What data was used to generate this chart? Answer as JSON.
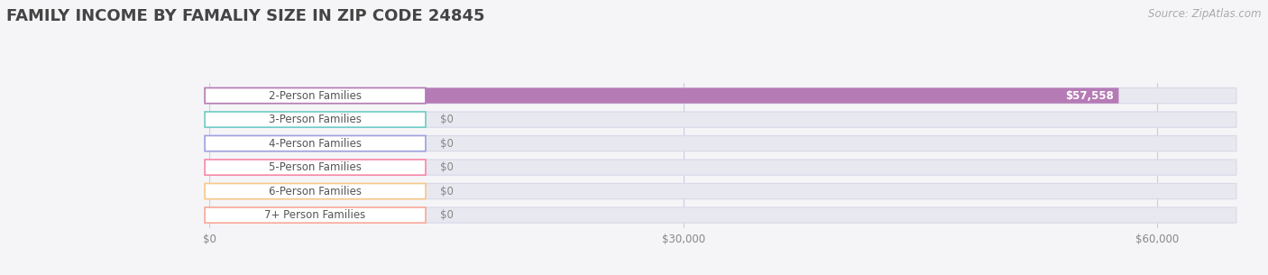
{
  "title": "FAMILY INCOME BY FAMALIY SIZE IN ZIP CODE 24845",
  "source": "Source: ZipAtlas.com",
  "categories": [
    "2-Person Families",
    "3-Person Families",
    "4-Person Families",
    "5-Person Families",
    "6-Person Families",
    "7+ Person Families"
  ],
  "values": [
    57558,
    0,
    0,
    0,
    0,
    0
  ],
  "bar_colors": [
    "#b57bb5",
    "#6eccc4",
    "#a0a0e0",
    "#f888a8",
    "#f8c888",
    "#f8a898"
  ],
  "value_labels": [
    "$57,558",
    "$0",
    "$0",
    "$0",
    "$0",
    "$0"
  ],
  "xlim": [
    0,
    65000
  ],
  "xticks": [
    0,
    30000,
    60000
  ],
  "xtick_labels": [
    "$0",
    "$30,000",
    "$60,000"
  ],
  "background_color": "#f5f5f8",
  "bar_background_color": "#e8e8f0",
  "bar_edge_color": "#d8d8e8",
  "title_fontsize": 13,
  "label_fontsize": 8.5,
  "value_fontsize": 8.5,
  "source_fontsize": 8.5
}
